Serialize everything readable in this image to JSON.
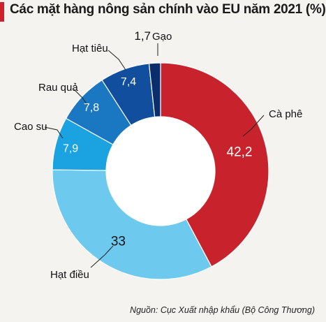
{
  "chart_data": {
    "type": "pie",
    "title": "Các mặt hàng nông sản chính vào EU năm 2021 (%)",
    "source": "Nguồn: Cục Xuất nhập khẩu (Bộ Công Thương)",
    "slices": [
      {
        "label": "Cà phê",
        "value": 42.2,
        "value_text": "42,2",
        "color": "#c8232c"
      },
      {
        "label": "Hạt điều",
        "value": 33,
        "value_text": "33",
        "color": "#6ec9ef"
      },
      {
        "label": "Cao su",
        "value": 7.9,
        "value_text": "7,9",
        "color": "#1aa3e0"
      },
      {
        "label": "Rau quả",
        "value": 7.8,
        "value_text": "7,8",
        "color": "#1a78c2"
      },
      {
        "label": "Hạt tiêu",
        "value": 7.4,
        "value_text": "7,4",
        "color": "#114f9e"
      },
      {
        "label": "Gạo",
        "value": 1.7,
        "value_text": "1,7",
        "color": "#0a2d6b"
      }
    ]
  },
  "colors": {
    "accent": "#d0202a",
    "background": "#f4f3ef"
  }
}
